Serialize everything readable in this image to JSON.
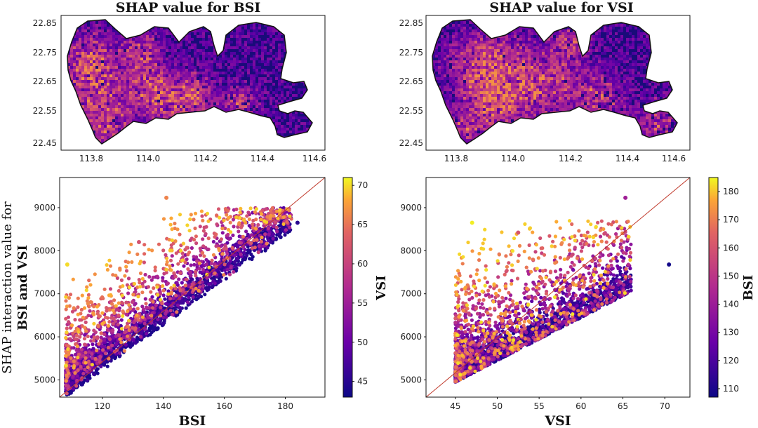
{
  "map_panels": [
    {
      "title": "SHAP value for BSI",
      "xticks": [
        "113.8",
        "114.0",
        "114.2",
        "114.4",
        "114.6"
      ],
      "yticks": [
        "22.85",
        "22.75",
        "22.65",
        "22.55",
        "22.45"
      ],
      "xlim": [
        113.7,
        114.66
      ],
      "ylim": [
        22.43,
        22.87
      ]
    },
    {
      "title": "SHAP value for VSI",
      "xticks": [
        "113.8",
        "114.0",
        "114.2",
        "114.4",
        "114.6"
      ],
      "yticks": [
        "22.85",
        "22.75",
        "22.65",
        "22.55",
        "22.45"
      ],
      "xlim": [
        113.7,
        114.66
      ],
      "ylim": [
        22.43,
        22.87
      ]
    }
  ],
  "chart_data": [
    {
      "type": "scatter",
      "xlabel": "BSI",
      "ylabel_line1": "SHAP interaction value for",
      "ylabel_line2": "BSI and VSI",
      "xlim": [
        106,
        193
      ],
      "ylim": [
        4600,
        9700
      ],
      "xticks": [
        "120",
        "140",
        "160",
        "180"
      ],
      "yticks": [
        "5000",
        "6000",
        "7000",
        "8000",
        "9000"
      ],
      "colorbar": {
        "label": "VSI",
        "min": 43,
        "max": 71,
        "ticks": [
          "45",
          "50",
          "55",
          "60",
          "65",
          "70"
        ]
      },
      "diagonal": {
        "x": [
          106,
          193
        ],
        "y": [
          4600,
          9700
        ]
      },
      "outliers": [
        {
          "x": 141,
          "y": 9230,
          "c": 66
        },
        {
          "x": 184,
          "y": 8650,
          "c": 45
        },
        {
          "x": 108.5,
          "y": 7680,
          "c": 70
        },
        {
          "x": 132,
          "y": 8200,
          "c": 62
        }
      ],
      "colormap": "plasma"
    },
    {
      "type": "scatter",
      "xlabel": "VSI",
      "ylabel_line1": "",
      "ylabel_line2": "",
      "xlim": [
        41.5,
        73
      ],
      "ylim": [
        4600,
        9700
      ],
      "xticks": [
        "45",
        "50",
        "55",
        "60",
        "65",
        "70"
      ],
      "yticks": [
        "5000",
        "6000",
        "7000",
        "8000",
        "9000"
      ],
      "colorbar": {
        "label": "BSI",
        "min": 107,
        "max": 185,
        "ticks": [
          "110",
          "120",
          "130",
          "140",
          "150",
          "160",
          "170",
          "180"
        ]
      },
      "diagonal": {
        "x": [
          41.5,
          73
        ],
        "y": [
          4600,
          9700
        ]
      },
      "outliers": [
        {
          "x": 65.3,
          "y": 9230,
          "c": 141
        },
        {
          "x": 70.5,
          "y": 7680,
          "c": 108
        },
        {
          "x": 47,
          "y": 8650,
          "c": 184
        },
        {
          "x": 52.5,
          "y": 8420,
          "c": 160
        }
      ],
      "colormap": "plasma"
    }
  ]
}
